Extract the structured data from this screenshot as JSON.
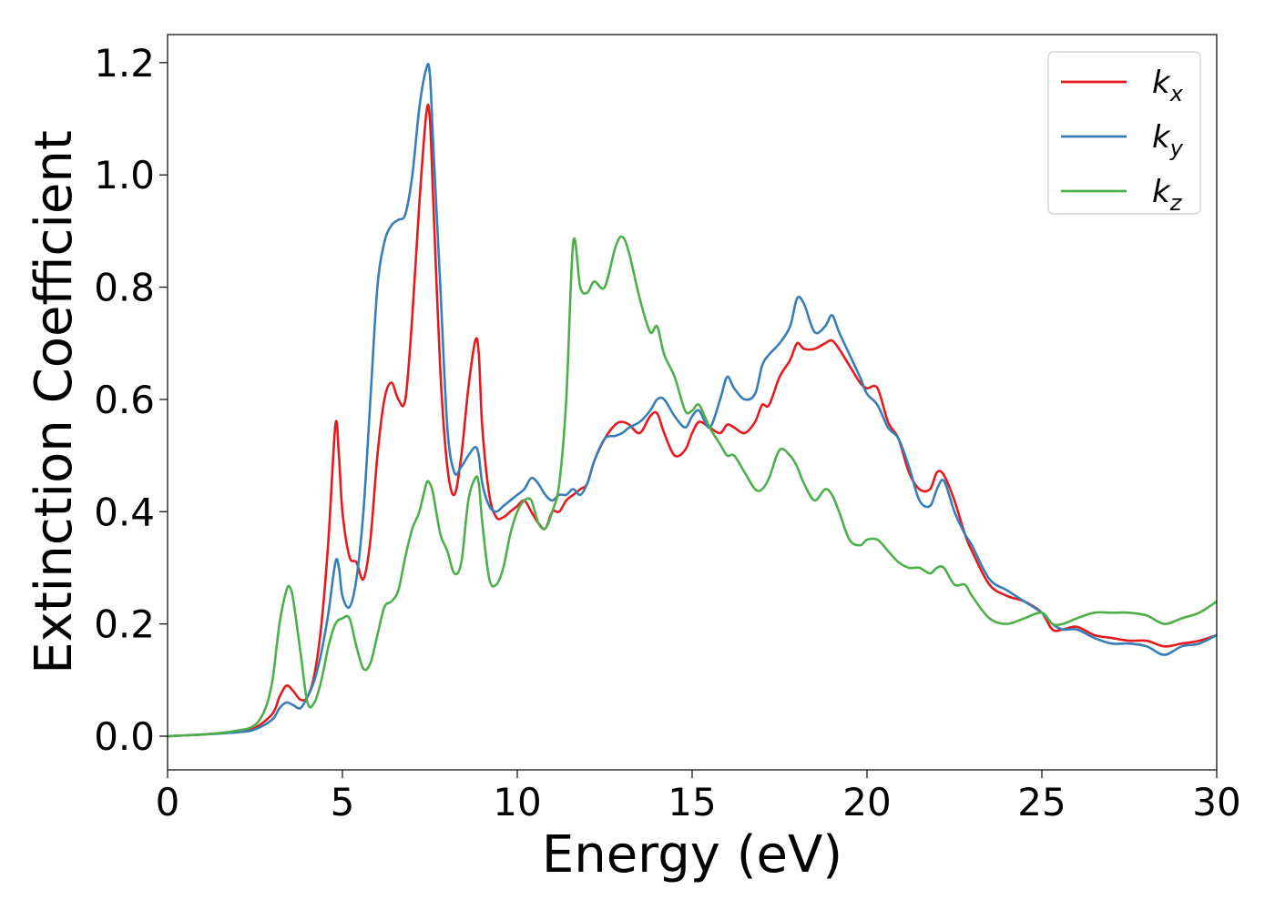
{
  "chart_data": {
    "type": "line",
    "xlabel": "Energy (eV)",
    "ylabel": "Extinction Coefficient",
    "xlim": [
      0,
      30
    ],
    "ylim": [
      -0.06,
      1.25
    ],
    "xticks": [
      0,
      5,
      10,
      15,
      20,
      25,
      30
    ],
    "yticks": [
      0.0,
      0.2,
      0.4,
      0.6,
      0.8,
      1.0,
      1.2
    ],
    "xtick_labels": [
      "0",
      "5",
      "10",
      "15",
      "20",
      "25",
      "30"
    ],
    "ytick_labels": [
      "0.0",
      "0.2",
      "0.4",
      "0.6",
      "0.8",
      "1.0",
      "1.2"
    ],
    "grid": false,
    "legend": "top-right",
    "series": [
      {
        "name": "k",
        "subscript": "x",
        "color": "#e41a1c",
        "x": [
          0,
          1,
          2,
          2.5,
          3,
          3.2,
          3.4,
          3.6,
          3.8,
          4.0,
          4.2,
          4.4,
          4.6,
          4.8,
          4.9,
          5.0,
          5.2,
          5.4,
          5.6,
          5.8,
          6.0,
          6.2,
          6.4,
          6.6,
          6.8,
          7.0,
          7.2,
          7.4,
          7.5,
          7.6,
          7.8,
          8.0,
          8.2,
          8.4,
          8.6,
          8.8,
          8.9,
          9.0,
          9.2,
          9.4,
          9.6,
          9.8,
          10.0,
          10.2,
          10.4,
          10.6,
          10.8,
          11.0,
          11.2,
          11.4,
          11.6,
          11.8,
          12.0,
          12.2,
          12.5,
          12.8,
          13.0,
          13.2,
          13.5,
          13.8,
          14.0,
          14.2,
          14.5,
          14.8,
          15.0,
          15.2,
          15.5,
          15.8,
          16.0,
          16.2,
          16.5,
          16.8,
          17.0,
          17.2,
          17.5,
          17.8,
          18.0,
          18.2,
          18.5,
          18.8,
          19.0,
          19.2,
          19.5,
          19.8,
          20.0,
          20.3,
          20.6,
          20.9,
          21.2,
          21.5,
          21.8,
          22.0,
          22.2,
          22.5,
          22.8,
          23.0,
          23.5,
          24.0,
          24.5,
          25.0,
          25.3,
          25.6,
          26.0,
          26.5,
          27.0,
          27.5,
          28.0,
          28.5,
          29.0,
          29.5,
          30.0
        ],
        "values": [
          0.0,
          0.003,
          0.008,
          0.015,
          0.04,
          0.07,
          0.09,
          0.08,
          0.065,
          0.07,
          0.11,
          0.2,
          0.35,
          0.555,
          0.5,
          0.4,
          0.32,
          0.31,
          0.28,
          0.35,
          0.5,
          0.6,
          0.63,
          0.6,
          0.6,
          0.75,
          0.95,
          1.11,
          1.1,
          0.95,
          0.65,
          0.48,
          0.43,
          0.5,
          0.62,
          0.705,
          0.68,
          0.55,
          0.43,
          0.39,
          0.39,
          0.4,
          0.41,
          0.42,
          0.4,
          0.38,
          0.37,
          0.4,
          0.4,
          0.42,
          0.43,
          0.44,
          0.45,
          0.49,
          0.53,
          0.555,
          0.56,
          0.555,
          0.54,
          0.57,
          0.575,
          0.54,
          0.5,
          0.51,
          0.54,
          0.56,
          0.55,
          0.54,
          0.555,
          0.55,
          0.54,
          0.56,
          0.59,
          0.59,
          0.64,
          0.67,
          0.7,
          0.69,
          0.69,
          0.7,
          0.705,
          0.69,
          0.66,
          0.63,
          0.62,
          0.62,
          0.56,
          0.53,
          0.47,
          0.44,
          0.44,
          0.47,
          0.465,
          0.42,
          0.36,
          0.33,
          0.27,
          0.25,
          0.24,
          0.22,
          0.19,
          0.19,
          0.195,
          0.18,
          0.175,
          0.17,
          0.17,
          0.16,
          0.165,
          0.17,
          0.18
        ]
      },
      {
        "name": "k",
        "subscript": "y",
        "color": "#377eb8",
        "x": [
          0,
          1,
          2,
          2.5,
          3,
          3.2,
          3.4,
          3.6,
          3.8,
          4.0,
          4.2,
          4.4,
          4.6,
          4.8,
          4.9,
          5.0,
          5.2,
          5.4,
          5.6,
          5.8,
          6.0,
          6.2,
          6.4,
          6.6,
          6.8,
          7.0,
          7.2,
          7.4,
          7.5,
          7.6,
          7.8,
          8.0,
          8.2,
          8.4,
          8.6,
          8.8,
          8.9,
          9.0,
          9.2,
          9.4,
          9.6,
          9.8,
          10.0,
          10.2,
          10.4,
          10.6,
          10.8,
          11.0,
          11.2,
          11.4,
          11.6,
          11.8,
          12.0,
          12.2,
          12.5,
          12.8,
          13.0,
          13.2,
          13.5,
          13.8,
          14.0,
          14.2,
          14.5,
          14.8,
          15.0,
          15.2,
          15.5,
          15.8,
          16.0,
          16.2,
          16.5,
          16.8,
          17.0,
          17.2,
          17.5,
          17.8,
          18.0,
          18.2,
          18.5,
          18.8,
          19.0,
          19.2,
          19.5,
          19.8,
          20.0,
          20.3,
          20.6,
          20.9,
          21.2,
          21.5,
          21.8,
          22.0,
          22.2,
          22.5,
          22.8,
          23.0,
          23.5,
          24.0,
          24.5,
          25.0,
          25.3,
          25.6,
          26.0,
          26.5,
          27.0,
          27.5,
          28.0,
          28.5,
          29.0,
          29.5,
          30.0
        ],
        "values": [
          0.0,
          0.003,
          0.007,
          0.012,
          0.03,
          0.05,
          0.06,
          0.055,
          0.05,
          0.07,
          0.1,
          0.15,
          0.22,
          0.31,
          0.3,
          0.25,
          0.23,
          0.28,
          0.4,
          0.6,
          0.8,
          0.88,
          0.91,
          0.92,
          0.93,
          1.0,
          1.12,
          1.19,
          1.18,
          1.05,
          0.8,
          0.55,
          0.47,
          0.48,
          0.5,
          0.515,
          0.5,
          0.45,
          0.41,
          0.4,
          0.41,
          0.42,
          0.43,
          0.44,
          0.46,
          0.45,
          0.43,
          0.42,
          0.43,
          0.43,
          0.44,
          0.43,
          0.45,
          0.49,
          0.53,
          0.535,
          0.54,
          0.55,
          0.56,
          0.58,
          0.6,
          0.6,
          0.57,
          0.55,
          0.57,
          0.58,
          0.55,
          0.6,
          0.64,
          0.62,
          0.6,
          0.61,
          0.66,
          0.68,
          0.7,
          0.73,
          0.78,
          0.77,
          0.72,
          0.73,
          0.75,
          0.72,
          0.68,
          0.64,
          0.61,
          0.59,
          0.55,
          0.53,
          0.48,
          0.42,
          0.41,
          0.44,
          0.455,
          0.4,
          0.36,
          0.34,
          0.28,
          0.26,
          0.24,
          0.22,
          0.2,
          0.19,
          0.19,
          0.175,
          0.165,
          0.165,
          0.16,
          0.145,
          0.16,
          0.165,
          0.18
        ]
      },
      {
        "name": "k",
        "subscript": "z",
        "color": "#4daf4a",
        "x": [
          0,
          1,
          2,
          2.5,
          2.8,
          3.0,
          3.2,
          3.4,
          3.5,
          3.6,
          3.8,
          4.0,
          4.2,
          4.4,
          4.6,
          4.8,
          5.0,
          5.2,
          5.4,
          5.6,
          5.8,
          6.0,
          6.2,
          6.4,
          6.6,
          6.8,
          7.0,
          7.2,
          7.4,
          7.5,
          7.6,
          7.8,
          8.0,
          8.2,
          8.4,
          8.6,
          8.8,
          8.9,
          9.0,
          9.2,
          9.4,
          9.6,
          9.8,
          10.0,
          10.2,
          10.4,
          10.6,
          10.8,
          11.0,
          11.2,
          11.4,
          11.6,
          11.8,
          12.0,
          12.2,
          12.5,
          12.8,
          13.0,
          13.2,
          13.5,
          13.8,
          14.0,
          14.2,
          14.5,
          14.8,
          15.0,
          15.2,
          15.5,
          15.8,
          16.0,
          16.2,
          16.5,
          16.8,
          17.0,
          17.2,
          17.5,
          17.8,
          18.0,
          18.2,
          18.5,
          18.8,
          19.0,
          19.2,
          19.5,
          19.8,
          20.0,
          20.3,
          20.6,
          20.9,
          21.2,
          21.5,
          21.8,
          22.0,
          22.2,
          22.5,
          22.8,
          23.0,
          23.5,
          24.0,
          24.5,
          25.0,
          25.3,
          25.6,
          26.0,
          26.5,
          27.0,
          27.5,
          28.0,
          28.5,
          29.0,
          29.5,
          30.0
        ],
        "values": [
          0.0,
          0.003,
          0.01,
          0.02,
          0.05,
          0.1,
          0.2,
          0.26,
          0.265,
          0.24,
          0.15,
          0.06,
          0.06,
          0.1,
          0.16,
          0.2,
          0.21,
          0.21,
          0.16,
          0.12,
          0.13,
          0.18,
          0.23,
          0.24,
          0.26,
          0.32,
          0.37,
          0.4,
          0.45,
          0.45,
          0.43,
          0.36,
          0.33,
          0.29,
          0.31,
          0.42,
          0.46,
          0.45,
          0.38,
          0.28,
          0.27,
          0.3,
          0.36,
          0.4,
          0.42,
          0.42,
          0.38,
          0.37,
          0.4,
          0.45,
          0.6,
          0.88,
          0.8,
          0.79,
          0.81,
          0.8,
          0.87,
          0.89,
          0.86,
          0.78,
          0.72,
          0.73,
          0.68,
          0.64,
          0.58,
          0.58,
          0.59,
          0.55,
          0.52,
          0.5,
          0.5,
          0.47,
          0.44,
          0.44,
          0.46,
          0.51,
          0.5,
          0.48,
          0.45,
          0.42,
          0.44,
          0.43,
          0.4,
          0.35,
          0.34,
          0.35,
          0.35,
          0.33,
          0.31,
          0.3,
          0.3,
          0.29,
          0.3,
          0.3,
          0.27,
          0.27,
          0.25,
          0.21,
          0.2,
          0.21,
          0.22,
          0.2,
          0.2,
          0.21,
          0.22,
          0.22,
          0.22,
          0.215,
          0.2,
          0.21,
          0.22,
          0.24
        ]
      }
    ]
  }
}
